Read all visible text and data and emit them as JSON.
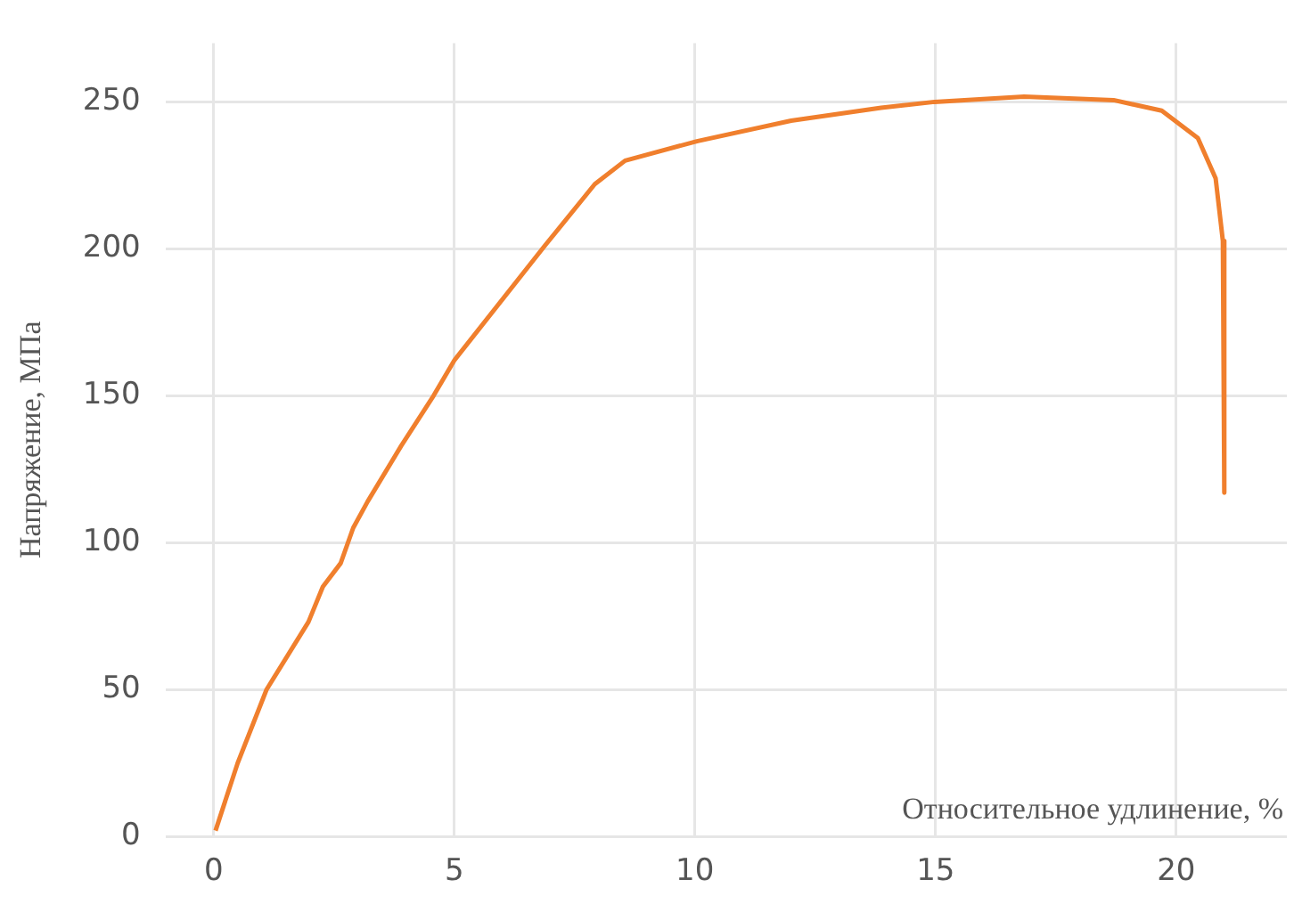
{
  "chart_data": {
    "type": "line",
    "xlabel": "Относительное удлинение, %",
    "ylabel": "Напряжение, МПа",
    "x": [
      0.04,
      0.5,
      1.1,
      1.97,
      2.27,
      2.64,
      2.9,
      3.2,
      3.9,
      4.57,
      5.0,
      6.88,
      7.92,
      8.55,
      10.04,
      12.0,
      13.87,
      14.98,
      16.84,
      18.7,
      19.7,
      20.45,
      20.82,
      20.97,
      21.0
    ],
    "series": [
      {
        "color": "#f07f2d",
        "values": [
          2,
          25,
          50,
          73,
          85,
          93,
          105,
          114,
          133,
          150,
          162,
          201,
          222,
          230,
          236.6,
          243.6,
          248,
          250,
          251.8,
          250.6,
          247,
          237.7,
          224,
          202.7,
          117
        ]
      }
    ],
    "xlim": [
      -1,
      22.3
    ],
    "ylim": [
      0,
      270
    ],
    "xticks": [
      0,
      5,
      10,
      15,
      20
    ],
    "yticks": [
      0,
      50,
      100,
      150,
      200,
      250
    ],
    "grid": true,
    "legend": false,
    "marker": "none",
    "line_style": "solid"
  }
}
